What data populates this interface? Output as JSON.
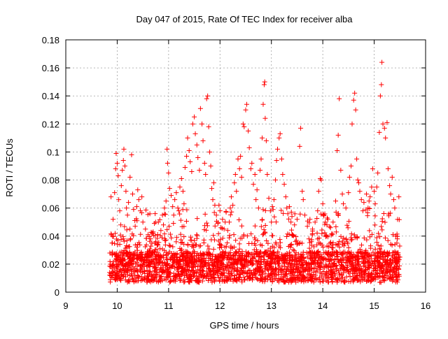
{
  "chart_data": {
    "type": "scatter",
    "title": "Day 047 of 2015, Rate Of TEC Index for receiver alba",
    "xlabel": "GPS time / hours",
    "ylabel": "ROTI / TECUs",
    "xlim": [
      9,
      16
    ],
    "ylim": [
      0,
      0.18
    ],
    "x_ticks": [
      9,
      10,
      11,
      12,
      13,
      14,
      15,
      16
    ],
    "y_ticks": [
      0,
      0.02,
      0.04,
      0.06,
      0.08,
      0.1,
      0.12,
      0.14,
      0.16,
      0.18
    ],
    "x_tick_labels": [
      "9",
      "10",
      "11",
      "12",
      "13",
      "14",
      "15",
      "16"
    ],
    "y_tick_labels": [
      "0",
      "0.02",
      "0.04",
      "0.06",
      "0.08",
      "0.1",
      "0.12",
      "0.14",
      "0.16",
      "0.18"
    ],
    "grid": true,
    "legend": "none",
    "marker": "+",
    "color": "#ff0000",
    "series": [
      {
        "x_range": [
          9.85,
          15.5
        ],
        "points": [
          [
            9.88,
            0.068
          ],
          [
            9.9,
            0.035
          ],
          [
            9.92,
            0.052
          ],
          [
            9.95,
            0.071
          ],
          [
            9.97,
            0.088
          ],
          [
            9.98,
            0.099
          ],
          [
            10.0,
            0.092
          ],
          [
            10.02,
            0.083
          ],
          [
            10.03,
            0.066
          ],
          [
            10.05,
            0.058
          ],
          [
            10.07,
            0.048
          ],
          [
            10.08,
            0.076
          ],
          [
            10.1,
            0.087
          ],
          [
            10.12,
            0.094
          ],
          [
            10.13,
            0.102
          ],
          [
            10.15,
            0.09
          ],
          [
            10.17,
            0.072
          ],
          [
            10.18,
            0.06
          ],
          [
            10.2,
            0.055
          ],
          [
            10.22,
            0.064
          ],
          [
            10.25,
            0.082
          ],
          [
            10.28,
            0.098
          ],
          [
            10.3,
            0.07
          ],
          [
            10.32,
            0.059
          ],
          [
            10.35,
            0.047
          ],
          [
            10.38,
            0.061
          ],
          [
            10.4,
            0.073
          ],
          [
            10.42,
            0.066
          ],
          [
            10.45,
            0.058
          ],
          [
            10.48,
            0.068
          ],
          [
            10.5,
            0.05
          ],
          [
            10.55,
            0.045
          ],
          [
            10.6,
            0.041
          ],
          [
            10.65,
            0.038
          ],
          [
            10.7,
            0.043
          ],
          [
            10.75,
            0.036
          ],
          [
            10.8,
            0.05
          ],
          [
            10.85,
            0.044
          ],
          [
            10.88,
            0.055
          ],
          [
            10.9,
            0.048
          ],
          [
            10.92,
            0.06
          ],
          [
            10.95,
            0.065
          ],
          [
            10.97,
            0.102
          ],
          [
            10.98,
            0.092
          ],
          [
            11.0,
            0.085
          ],
          [
            11.02,
            0.074
          ],
          [
            11.05,
            0.069
          ],
          [
            11.08,
            0.061
          ],
          [
            11.1,
            0.055
          ],
          [
            11.12,
            0.066
          ],
          [
            11.15,
            0.071
          ],
          [
            11.18,
            0.06
          ],
          [
            11.2,
            0.058
          ],
          [
            11.22,
            0.075
          ],
          [
            11.25,
            0.081
          ],
          [
            11.28,
            0.072
          ],
          [
            11.3,
            0.063
          ],
          [
            11.32,
            0.089
          ],
          [
            11.35,
            0.097
          ],
          [
            11.37,
            0.11
          ],
          [
            11.4,
            0.101
          ],
          [
            11.42,
            0.093
          ],
          [
            11.45,
            0.086
          ],
          [
            11.47,
            0.12
          ],
          [
            11.5,
            0.125
          ],
          [
            11.52,
            0.113
          ],
          [
            11.55,
            0.105
          ],
          [
            11.57,
            0.096
          ],
          [
            11.6,
            0.087
          ],
          [
            11.62,
            0.131
          ],
          [
            11.65,
            0.12
          ],
          [
            11.67,
            0.108
          ],
          [
            11.7,
            0.092
          ],
          [
            11.72,
            0.084
          ],
          [
            11.74,
            0.138
          ],
          [
            11.76,
            0.14
          ],
          [
            11.78,
            0.118
          ],
          [
            11.8,
            0.1
          ],
          [
            11.82,
            0.09
          ],
          [
            11.84,
            0.074
          ],
          [
            11.86,
            0.066
          ],
          [
            11.88,
            0.078
          ],
          [
            11.9,
            0.062
          ],
          [
            11.93,
            0.055
          ],
          [
            11.96,
            0.049
          ],
          [
            11.98,
            0.062
          ],
          [
            12.0,
            0.058
          ],
          [
            12.02,
            0.046
          ],
          [
            12.05,
            0.052
          ],
          [
            12.08,
            0.045
          ],
          [
            12.1,
            0.05
          ],
          [
            12.12,
            0.057
          ],
          [
            12.15,
            0.044
          ],
          [
            12.18,
            0.05
          ],
          [
            12.2,
            0.06
          ],
          [
            12.22,
            0.068
          ],
          [
            12.25,
            0.062
          ],
          [
            12.28,
            0.078
          ],
          [
            12.3,
            0.084
          ],
          [
            12.32,
            0.072
          ],
          [
            12.35,
            0.095
          ],
          [
            12.38,
            0.088
          ],
          [
            12.4,
            0.097
          ],
          [
            12.42,
            0.082
          ],
          [
            12.45,
            0.12
          ],
          [
            12.47,
            0.118
          ],
          [
            12.5,
            0.13
          ],
          [
            12.52,
            0.134
          ],
          [
            12.55,
            0.115
          ],
          [
            12.57,
            0.103
          ],
          [
            12.6,
            0.088
          ],
          [
            12.62,
            0.092
          ],
          [
            12.65,
            0.077
          ],
          [
            12.68,
            0.084
          ],
          [
            12.7,
            0.066
          ],
          [
            12.72,
            0.073
          ],
          [
            12.75,
            0.06
          ],
          [
            12.78,
            0.087
          ],
          [
            12.8,
            0.095
          ],
          [
            12.82,
            0.11
          ],
          [
            12.84,
            0.134
          ],
          [
            12.86,
            0.148
          ],
          [
            12.87,
            0.15
          ],
          [
            12.88,
            0.124
          ],
          [
            12.9,
            0.108
          ],
          [
            12.92,
            0.084
          ],
          [
            12.95,
            0.067
          ],
          [
            12.98,
            0.058
          ],
          [
            13.0,
            0.05
          ],
          [
            13.02,
            0.061
          ],
          [
            13.05,
            0.066
          ],
          [
            13.08,
            0.08
          ],
          [
            13.1,
            0.094
          ],
          [
            13.12,
            0.102
          ],
          [
            13.15,
            0.11
          ],
          [
            13.17,
            0.113
          ],
          [
            13.2,
            0.095
          ],
          [
            13.22,
            0.084
          ],
          [
            13.25,
            0.077
          ],
          [
            13.28,
            0.068
          ],
          [
            13.3,
            0.06
          ],
          [
            13.32,
            0.056
          ],
          [
            13.35,
            0.061
          ],
          [
            13.38,
            0.05
          ],
          [
            13.4,
            0.054
          ],
          [
            13.45,
            0.048
          ],
          [
            13.5,
            0.052
          ],
          [
            13.55,
            0.104
          ],
          [
            13.57,
            0.117
          ],
          [
            13.6,
            0.072
          ],
          [
            13.62,
            0.066
          ],
          [
            13.65,
            0.055
          ],
          [
            13.7,
            0.047
          ],
          [
            13.75,
            0.052
          ],
          [
            13.8,
            0.045
          ],
          [
            13.85,
            0.05
          ],
          [
            13.9,
            0.058
          ],
          [
            13.92,
            0.072
          ],
          [
            13.95,
            0.081
          ],
          [
            13.97,
            0.08
          ],
          [
            14.0,
            0.063
          ],
          [
            14.02,
            0.055
          ],
          [
            14.05,
            0.05
          ],
          [
            14.08,
            0.048
          ],
          [
            14.1,
            0.052
          ],
          [
            14.15,
            0.046
          ],
          [
            14.2,
            0.05
          ],
          [
            14.25,
            0.065
          ],
          [
            14.28,
            0.101
          ],
          [
            14.3,
            0.112
          ],
          [
            14.32,
            0.138
          ],
          [
            14.35,
            0.087
          ],
          [
            14.38,
            0.07
          ],
          [
            14.4,
            0.063
          ],
          [
            14.45,
            0.06
          ],
          [
            14.5,
            0.071
          ],
          [
            14.52,
            0.082
          ],
          [
            14.55,
            0.09
          ],
          [
            14.57,
            0.12
          ],
          [
            14.6,
            0.137
          ],
          [
            14.62,
            0.142
          ],
          [
            14.64,
            0.13
          ],
          [
            14.66,
            0.095
          ],
          [
            14.68,
            0.08
          ],
          [
            14.7,
            0.078
          ],
          [
            14.72,
            0.072
          ],
          [
            14.75,
            0.066
          ],
          [
            14.78,
            0.058
          ],
          [
            14.8,
            0.064
          ],
          [
            14.85,
            0.07
          ],
          [
            14.88,
            0.06
          ],
          [
            14.9,
            0.065
          ],
          [
            14.92,
            0.068
          ],
          [
            14.95,
            0.075
          ],
          [
            14.97,
            0.088
          ],
          [
            15.0,
            0.072
          ],
          [
            15.02,
            0.063
          ],
          [
            15.05,
            0.075
          ],
          [
            15.07,
            0.085
          ],
          [
            15.1,
            0.114
          ],
          [
            15.12,
            0.14
          ],
          [
            15.14,
            0.148
          ],
          [
            15.15,
            0.164
          ],
          [
            15.17,
            0.12
          ],
          [
            15.2,
            0.117
          ],
          [
            15.22,
            0.11
          ],
          [
            15.25,
            0.121
          ],
          [
            15.27,
            0.088
          ],
          [
            15.3,
            0.076
          ],
          [
            15.32,
            0.07
          ],
          [
            15.35,
            0.082
          ],
          [
            15.38,
            0.066
          ],
          [
            15.4,
            0.06
          ],
          [
            15.42,
            0.04
          ],
          [
            15.45,
            0.038
          ],
          [
            15.48,
            0.068
          ],
          [
            15.5,
            0.025
          ]
        ]
      }
    ]
  }
}
